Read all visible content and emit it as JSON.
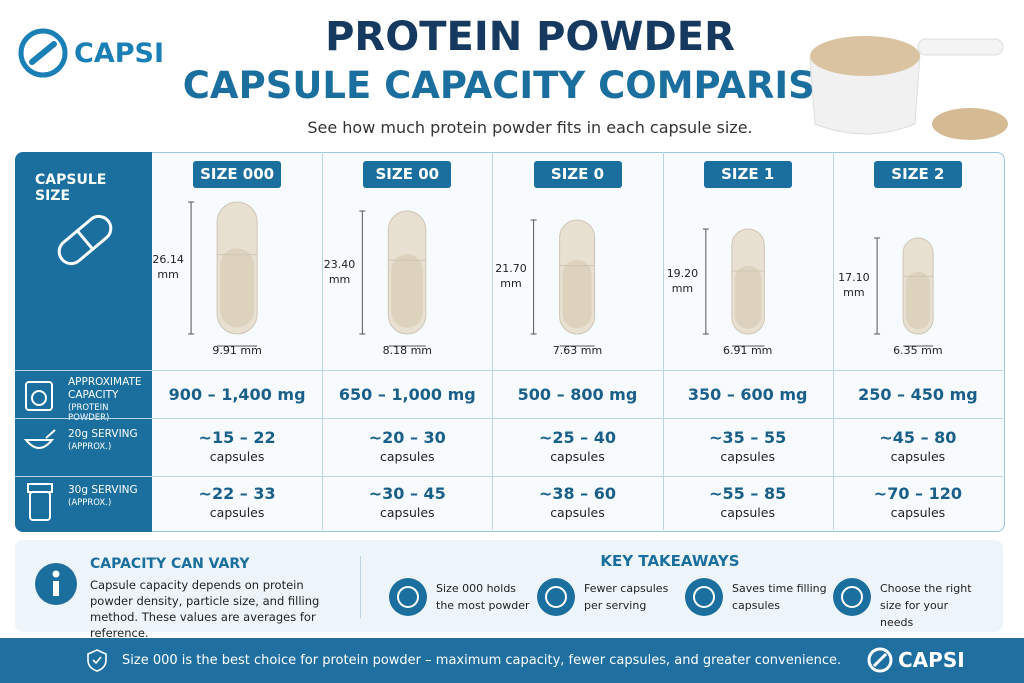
{
  "brand": "CAPSI",
  "title": {
    "line1": "PROTEIN POWDER",
    "line2": "CAPSULE CAPACITY COMPARISON"
  },
  "subtitle": "See how much protein powder fits in each capsule size.",
  "table": {
    "corner": "CAPSULE SIZE",
    "row_headers": [
      {
        "label": "APPROXIMATE CAPACITY",
        "sub": "(PROTEIN POWDER)"
      },
      {
        "label": "20g SERVING",
        "sub": "(APPROX.)"
      },
      {
        "label": "30g SERVING",
        "sub": "(APPROX.)"
      }
    ],
    "count_unit": "capsules",
    "columns": [
      {
        "size": "SIZE 000",
        "length": "26.14 mm",
        "width": "9.91 mm",
        "capacity": "900 – 1,400 mg",
        "serving_20g": "~15 – 22",
        "serving_30g": "~22 – 33"
      },
      {
        "size": "SIZE 00",
        "length": "23.40 mm",
        "width": "8.18 mm",
        "capacity": "650 – 1,000 mg",
        "serving_20g": "~20 – 30",
        "serving_30g": "~30 – 45"
      },
      {
        "size": "SIZE 0",
        "length": "21.70 mm",
        "width": "7.63 mm",
        "capacity": "500 – 800 mg",
        "serving_20g": "~25 – 40",
        "serving_30g": "~38 – 60"
      },
      {
        "size": "SIZE 1",
        "length": "19.20 mm",
        "width": "6.91 mm",
        "capacity": "350 – 600 mg",
        "serving_20g": "~35 – 55",
        "serving_30g": "~55 – 85"
      },
      {
        "size": "SIZE 2",
        "length": "17.10 mm",
        "width": "6.35 mm",
        "capacity": "250 – 450 mg",
        "serving_20g": "~45 – 80",
        "serving_30g": "~70 – 120"
      }
    ]
  },
  "note": {
    "title": "CAPACITY CAN VARY",
    "text": "Capsule capacity depends on protein powder density, particle size, and filling method. These values are averages for reference."
  },
  "takeaways": {
    "title": "KEY TAKEAWAYS",
    "items": [
      "Size 000 holds the most powder",
      "Fewer capsules per serving",
      "Saves time filling capsules",
      "Choose the right size for your needs"
    ]
  },
  "footer": {
    "text": "Size 000 is the best choice for protein powder – maximum capacity, fewer capsules, and greater convenience.",
    "brand": "CAPSI"
  }
}
